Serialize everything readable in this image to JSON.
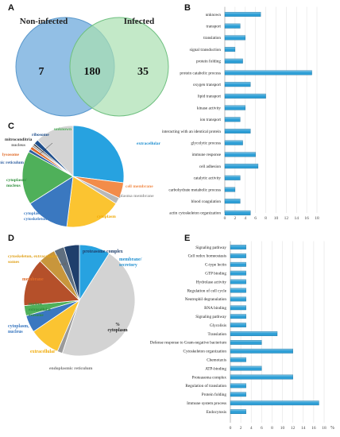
{
  "panel_letters": [
    "A",
    "B",
    "C",
    "D",
    "E"
  ],
  "venn": {
    "left_label": "Non-infected",
    "right_label": "Infected",
    "left_only": "7",
    "overlap": "180",
    "right_only": "35",
    "left_color": "#7fb4e0",
    "right_color": "#a9e0b0"
  },
  "chart_data": [
    {
      "type": "bar",
      "orientation": "horizontal",
      "panel": "B",
      "categories": [
        "unknown",
        "transport",
        "translation",
        "signal transduction",
        "protein folding",
        "protein catabolic process",
        "oxygen transport",
        "lipid transport",
        "kinase activity",
        "ion transport",
        "interacting with an identical protein",
        "glycolytic process",
        "immune response",
        "cell adhesion",
        "catalytic activity",
        "carbohydrate metabolic process",
        "blood coagulation",
        "actin cytoskeleton organization"
      ],
      "values": [
        7,
        3,
        4,
        2,
        3.5,
        17,
        5,
        8,
        4,
        3,
        5,
        3.5,
        6,
        6.5,
        3,
        2,
        3,
        5
      ],
      "xlim": [
        0,
        18
      ],
      "xticks": [
        0,
        2,
        4,
        6,
        8,
        10,
        12,
        14,
        16,
        18
      ],
      "color": "#2e9fd6"
    },
    {
      "type": "pie",
      "panel": "C",
      "labels": [
        "extracellular",
        "cell membrane",
        "plasma membrane",
        "cytoplasm",
        "cytoplasm/ cytoskeleton",
        "cytoplasm/ nucleus",
        "endoplasmic reticulum",
        "lysosome",
        "nucleus",
        "mitroconditria",
        "ribosome",
        "unknown"
      ],
      "values": [
        27,
        5,
        2,
        18,
        14,
        17,
        1,
        1,
        0.6,
        0.6,
        1.5,
        12.3
      ],
      "colors": [
        "#27a2e0",
        "#f28c4a",
        "#b8b8b8",
        "#fbc431",
        "#3a78c0",
        "#4fb05a",
        "#2f5fa0",
        "#e06c2a",
        "#9a9a9a",
        "#3a3a3a",
        "#1f4f8c",
        "#d4d4d4"
      ]
    },
    {
      "type": "pie",
      "panel": "D",
      "labels": [
        "membrane/ secretory",
        "cytoplasm",
        "endoplasmic reticulum",
        "extracellular",
        "cytoplasm, nucleus",
        "nucleus extracellular exosome",
        "membrane",
        "cytoskeleton, extracellular, exosomes",
        "cell",
        "proteasome complex"
      ],
      "values": [
        9,
        46,
        1.5,
        9,
        5,
        3,
        14,
        5,
        3,
        4.5
      ],
      "colors": [
        "#27a2e0",
        "#d3d3d3",
        "#9a9a9a",
        "#fbc431",
        "#3a78c0",
        "#4fb05a",
        "#b5502a",
        "#c8963c",
        "#5f6f80",
        "#1f3f6c"
      ],
      "inner_label": "%\ncytoplasm"
    },
    {
      "type": "bar",
      "orientation": "horizontal",
      "panel": "E",
      "categories": [
        "Signaling pathway",
        "Cell redox homeostasis",
        "C-type lectin",
        "GTP binding",
        "Hydrolase activity",
        "Regulation of cell cycle",
        "Neutrophil degranulation",
        "RNA binding",
        "Signaling pathway",
        "Glycolisis",
        "Translation",
        "Defense response to Gram-negative bacterium",
        "Cytoskeleton organization",
        "Chemotaxis",
        "ATP-binding",
        "Proteasoma complex",
        "Regulation of translation",
        "Protein folding",
        "Immune system process",
        "Endocytosis"
      ],
      "values": [
        3,
        3,
        3,
        3,
        3,
        3,
        3,
        3,
        3,
        3,
        9,
        6,
        12,
        3,
        6,
        12,
        3,
        3,
        17,
        3
      ],
      "xlim": [
        0,
        18
      ],
      "xticks": [
        0,
        2,
        4,
        6,
        8,
        10,
        12,
        14,
        16,
        18
      ],
      "xlabel": "%",
      "color": "#2e9fd6"
    }
  ]
}
